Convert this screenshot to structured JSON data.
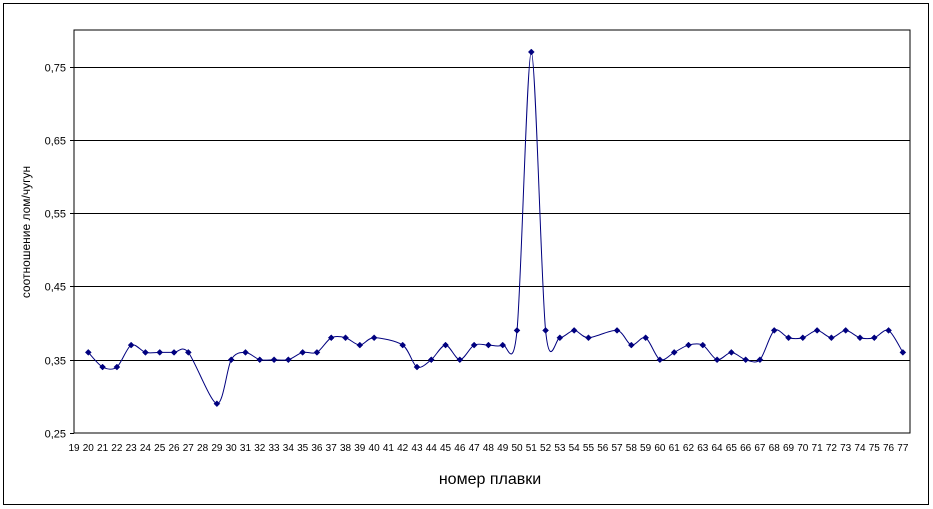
{
  "chart_data": {
    "type": "line",
    "title": "",
    "xlabel": "номер плавки",
    "ylabel": "соотношение лом/чугун",
    "ylim": [
      0.25,
      0.8
    ],
    "yticks": [
      0.25,
      0.35,
      0.45,
      0.55,
      0.65,
      0.75
    ],
    "ytick_labels": [
      "0,25",
      "0,35",
      "0,45",
      "0,55",
      "0,65",
      "0,75"
    ],
    "grid": "horizontal",
    "legend": "none",
    "colors": {
      "series": "#00007f",
      "grid": "#000000",
      "background": "#ffffff"
    },
    "marker": "diamond",
    "smooth": true,
    "categories": [
      "19",
      "20",
      "21",
      "22",
      "23",
      "24",
      "25",
      "26",
      "27",
      "28",
      "29",
      "30",
      "31",
      "32",
      "33",
      "34",
      "35",
      "36",
      "37",
      "38",
      "39",
      "40",
      "41",
      "42",
      "43",
      "44",
      "45",
      "46",
      "47",
      "48",
      "49",
      "50",
      "51",
      "52",
      "53",
      "54",
      "55",
      "56",
      "57",
      "58",
      "59",
      "60",
      "61",
      "62",
      "63",
      "64",
      "65",
      "66",
      "67",
      "68",
      "69",
      "70",
      "71",
      "72",
      "73",
      "74",
      "75",
      "76",
      "77"
    ],
    "series": [
      {
        "values": [
          null,
          0.36,
          0.34,
          0.34,
          0.37,
          0.36,
          0.36,
          0.36,
          0.36,
          null,
          0.29,
          0.35,
          0.36,
          0.35,
          0.35,
          0.35,
          0.36,
          0.36,
          0.38,
          0.38,
          0.37,
          0.38,
          null,
          0.37,
          0.34,
          0.35,
          0.37,
          0.35,
          0.37,
          0.37,
          0.37,
          0.39,
          0.77,
          0.39,
          0.38,
          0.39,
          0.38,
          null,
          0.39,
          0.37,
          0.38,
          0.35,
          0.36,
          0.37,
          0.37,
          0.35,
          0.36,
          0.35,
          0.35,
          0.39,
          0.38,
          0.38,
          0.39,
          0.38,
          0.39,
          0.38,
          0.38,
          0.39,
          0.36
        ]
      }
    ]
  }
}
